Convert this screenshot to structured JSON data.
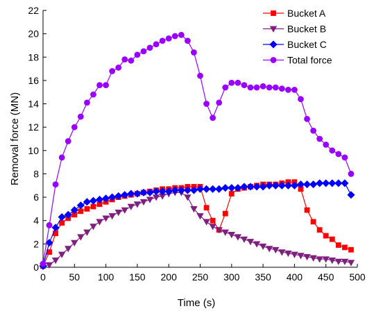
{
  "chart_data": {
    "type": "line",
    "xlabel": "Time (s)",
    "ylabel": "Removal force (MN)",
    "xlim": [
      0,
      500
    ],
    "ylim": [
      0,
      22
    ],
    "xticks": [
      0,
      50,
      100,
      150,
      200,
      250,
      300,
      350,
      400,
      450,
      500
    ],
    "yticks": [
      0,
      2,
      4,
      6,
      8,
      10,
      12,
      14,
      16,
      18,
      20,
      22
    ],
    "grid": false,
    "legend_position": "top-right",
    "series": [
      {
        "name": "Bucket A",
        "color": "#ff0000",
        "marker": "square",
        "x": [
          0,
          10,
          20,
          30,
          40,
          50,
          60,
          70,
          80,
          90,
          100,
          110,
          120,
          130,
          140,
          150,
          160,
          170,
          180,
          190,
          200,
          210,
          220,
          230,
          240,
          250,
          260,
          270,
          280,
          290,
          300,
          310,
          320,
          330,
          340,
          350,
          360,
          370,
          380,
          390,
          400,
          410,
          420,
          430,
          440,
          450,
          460,
          470,
          480,
          490
        ],
        "y": [
          0.1,
          1.3,
          2.9,
          3.8,
          4.2,
          4.5,
          4.8,
          5.0,
          5.2,
          5.4,
          5.6,
          5.8,
          6.0,
          6.1,
          6.2,
          6.3,
          6.4,
          6.5,
          6.6,
          6.7,
          6.7,
          6.8,
          6.8,
          6.9,
          6.9,
          6.9,
          5.1,
          4.0,
          3.2,
          4.6,
          6.3,
          6.7,
          6.8,
          6.9,
          7.0,
          7.1,
          7.1,
          7.1,
          7.2,
          7.3,
          7.3,
          6.7,
          4.9,
          3.9,
          3.2,
          2.7,
          2.4,
          1.9,
          1.7,
          1.5
        ]
      },
      {
        "name": "Bucket B",
        "color": "#7f1f7f",
        "marker": "triangle-down",
        "x": [
          0,
          10,
          20,
          30,
          40,
          50,
          60,
          70,
          80,
          90,
          100,
          110,
          120,
          130,
          140,
          150,
          160,
          170,
          180,
          190,
          200,
          210,
          220,
          230,
          240,
          250,
          260,
          270,
          280,
          290,
          300,
          310,
          320,
          330,
          340,
          350,
          360,
          370,
          380,
          390,
          400,
          410,
          420,
          430,
          440,
          450,
          460,
          470,
          480,
          490
        ],
        "y": [
          0.1,
          0.2,
          0.6,
          1.1,
          1.6,
          2.1,
          2.6,
          3.0,
          3.5,
          3.9,
          4.2,
          4.4,
          4.7,
          4.9,
          5.2,
          5.4,
          5.6,
          5.8,
          6.0,
          6.1,
          6.3,
          6.4,
          6.4,
          6.0,
          5.0,
          4.4,
          3.9,
          3.5,
          3.2,
          3.0,
          2.8,
          2.6,
          2.4,
          2.2,
          2.0,
          1.8,
          1.6,
          1.5,
          1.3,
          1.2,
          1.1,
          1.0,
          0.9,
          0.8,
          0.7,
          0.7,
          0.6,
          0.5,
          0.5,
          0.4
        ]
      },
      {
        "name": "Bucket C",
        "color": "#0000ff",
        "marker": "diamond",
        "x": [
          0,
          10,
          20,
          30,
          40,
          50,
          60,
          70,
          80,
          90,
          100,
          110,
          120,
          130,
          140,
          150,
          160,
          170,
          180,
          190,
          200,
          210,
          220,
          230,
          240,
          250,
          260,
          270,
          280,
          290,
          300,
          310,
          320,
          330,
          340,
          350,
          360,
          370,
          380,
          390,
          400,
          410,
          420,
          430,
          440,
          450,
          460,
          470,
          480,
          490
        ],
        "y": [
          0.1,
          2.1,
          3.4,
          4.3,
          4.5,
          4.9,
          5.3,
          5.6,
          5.7,
          5.8,
          5.9,
          6.0,
          6.1,
          6.2,
          6.3,
          6.3,
          6.4,
          6.4,
          6.5,
          6.5,
          6.5,
          6.6,
          6.6,
          6.6,
          6.6,
          6.7,
          6.7,
          6.7,
          6.7,
          6.8,
          6.8,
          6.8,
          6.9,
          6.9,
          6.9,
          6.9,
          7.0,
          7.0,
          7.0,
          7.0,
          7.0,
          7.1,
          7.1,
          7.1,
          7.2,
          7.2,
          7.2,
          7.2,
          7.2,
          6.2
        ]
      },
      {
        "name": "Total force",
        "color": "#9900ff",
        "marker": "circle",
        "x": [
          0,
          10,
          20,
          30,
          40,
          50,
          60,
          70,
          80,
          90,
          100,
          110,
          120,
          130,
          140,
          150,
          160,
          170,
          180,
          190,
          200,
          210,
          220,
          230,
          240,
          250,
          260,
          270,
          280,
          290,
          300,
          310,
          320,
          330,
          340,
          350,
          360,
          370,
          380,
          390,
          400,
          410,
          420,
          430,
          440,
          450,
          460,
          470,
          480,
          490
        ],
        "y": [
          0.3,
          3.6,
          7.1,
          9.4,
          10.8,
          12.0,
          12.9,
          14.1,
          14.8,
          15.6,
          15.6,
          16.8,
          17.1,
          17.8,
          17.7,
          18.2,
          18.5,
          18.8,
          19.1,
          19.4,
          19.6,
          19.8,
          19.9,
          19.4,
          18.4,
          16.4,
          14.0,
          12.8,
          14.1,
          15.4,
          15.8,
          15.8,
          15.6,
          15.4,
          15.4,
          15.5,
          15.4,
          15.4,
          15.3,
          15.2,
          15.2,
          14.4,
          12.7,
          11.7,
          11.0,
          10.5,
          10.0,
          9.7,
          9.4,
          8.0
        ]
      }
    ]
  }
}
